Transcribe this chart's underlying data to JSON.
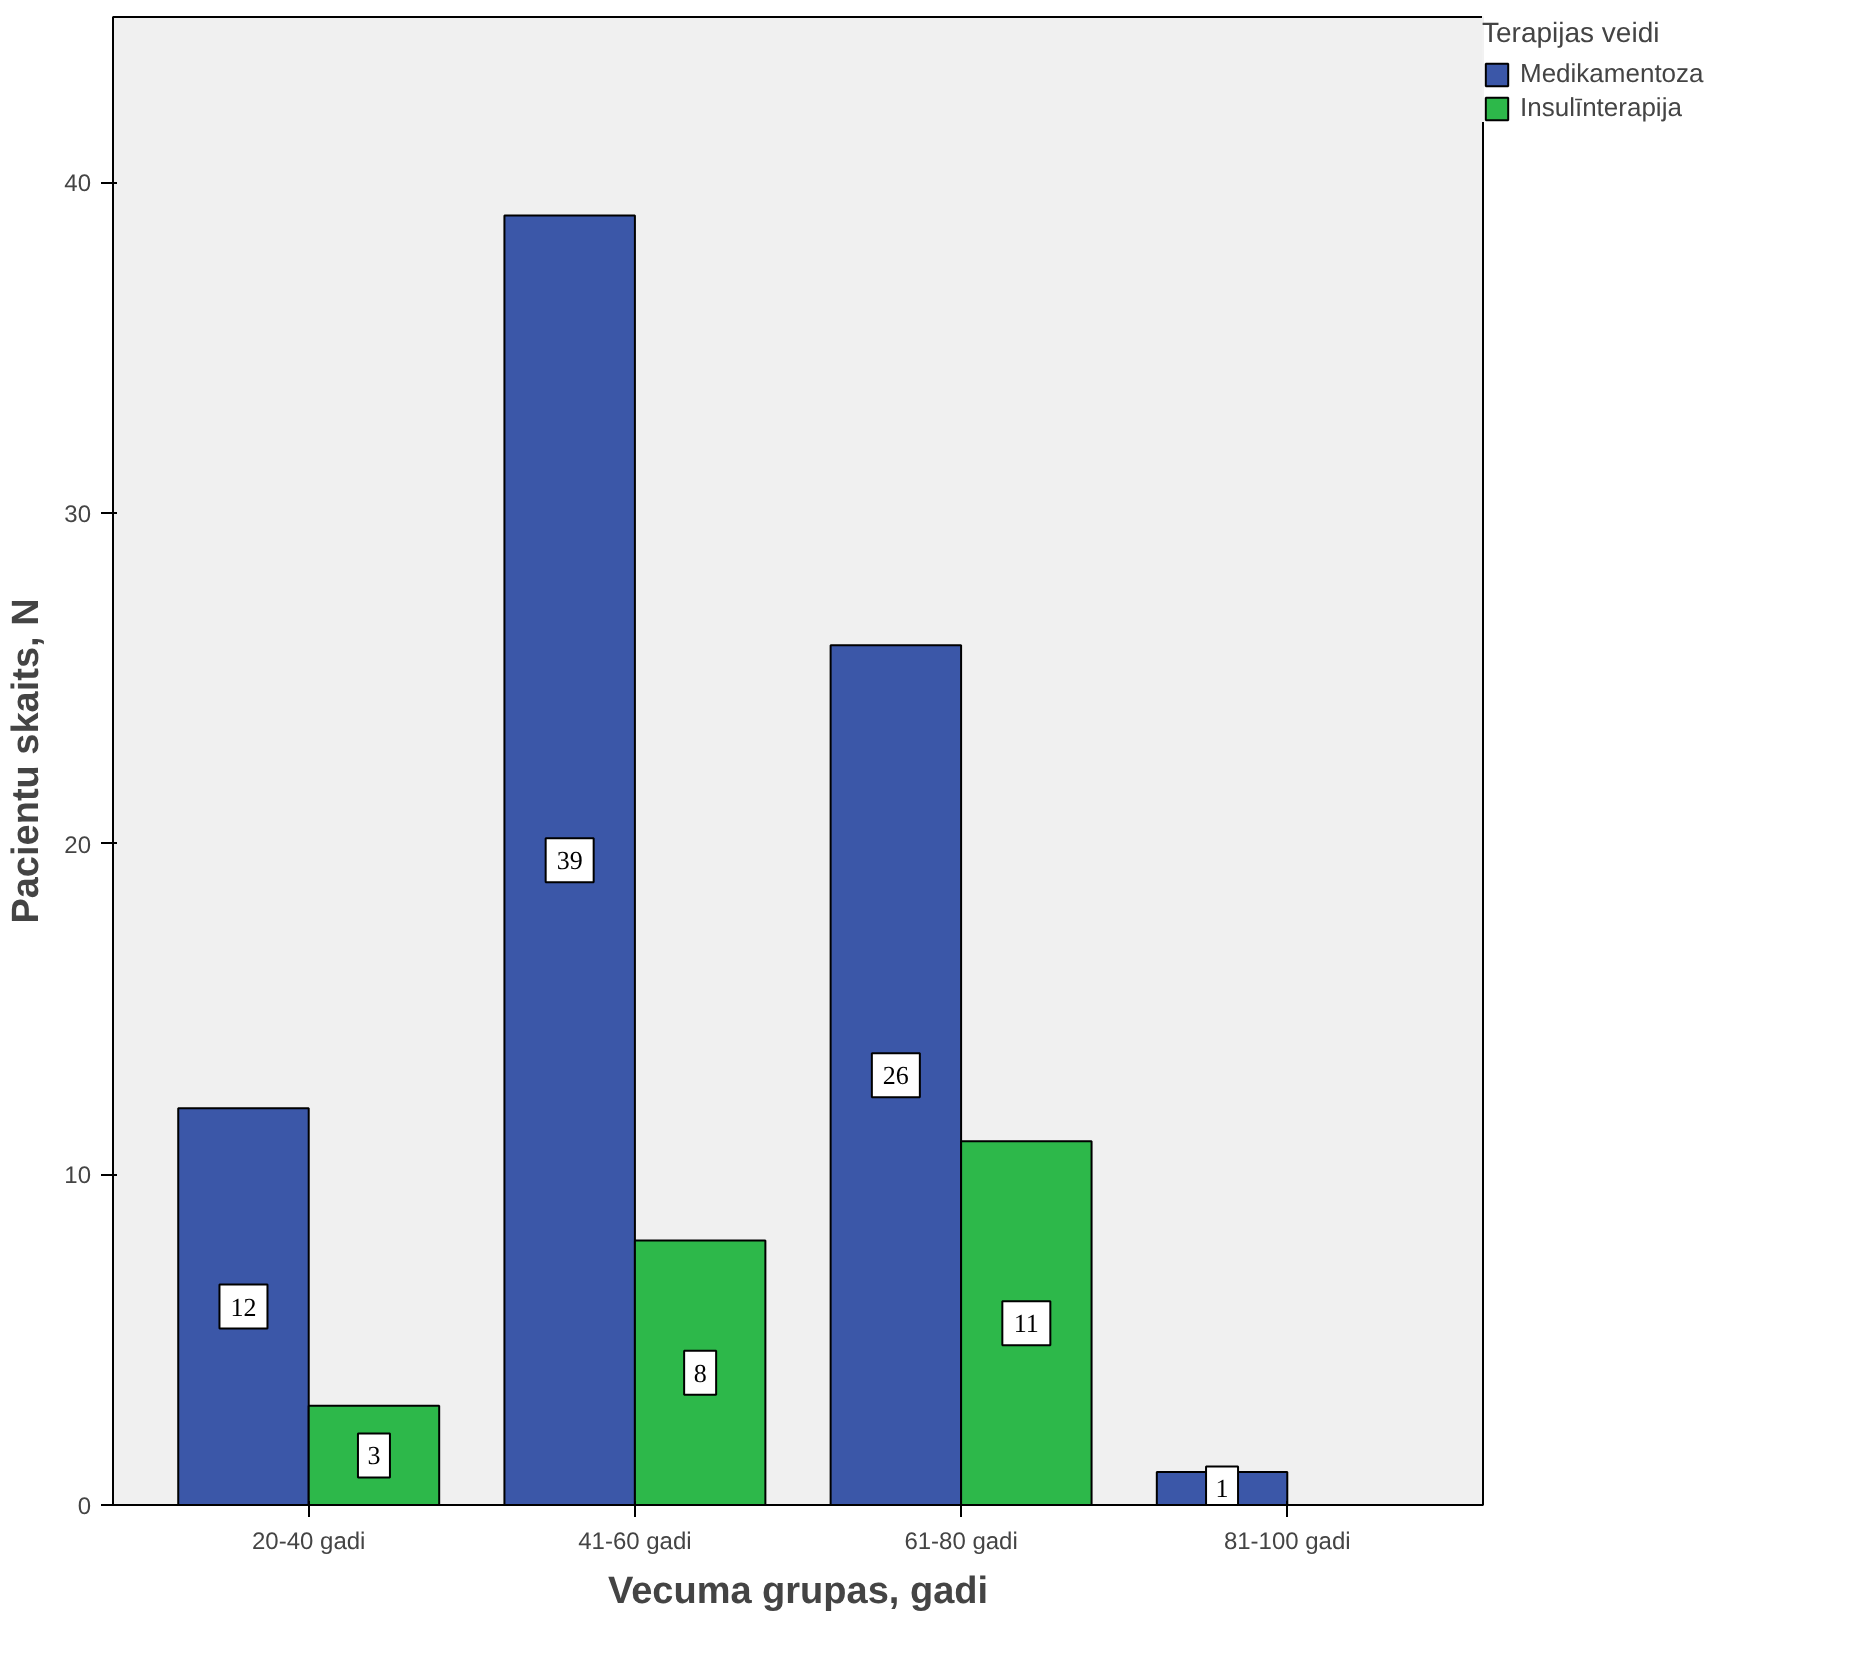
{
  "chart_data": {
    "type": "bar",
    "xlabel": "Vecuma grupas, gadi",
    "ylabel": "Pacientu skaits, N",
    "legend_title": "Terapijas veidi",
    "categories": [
      "20-40 gadi",
      "41-60 gadi",
      "61-80 gadi",
      "81-100 gadi"
    ],
    "series": [
      {
        "name": "Medikamentoza",
        "color": "#3b57a8",
        "values": [
          12,
          39,
          26,
          1
        ]
      },
      {
        "name": "Insulīnterapija",
        "color": "#2db84a",
        "values": [
          3,
          8,
          11,
          null
        ]
      }
    ],
    "ylim": [
      0,
      45
    ],
    "yticks": [
      0,
      10,
      20,
      30,
      40
    ],
    "grid": false,
    "legend": "top right",
    "data_labels": true
  }
}
